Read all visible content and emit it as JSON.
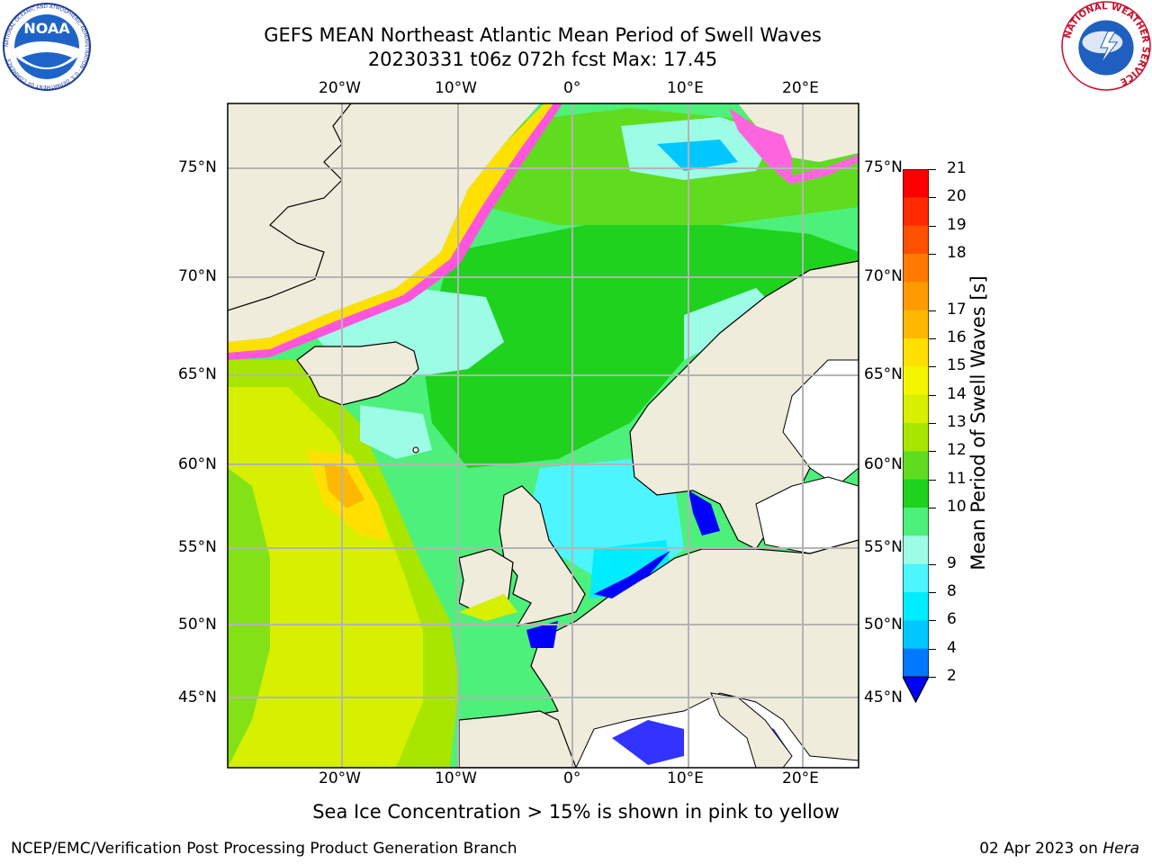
{
  "header": {
    "title_line1": "GEFS MEAN Northeast Atlantic Mean Period of Swell Waves",
    "title_line2": "20230331 t06z 072h fcst   Max: 17.45"
  },
  "logos": {
    "left": {
      "name": "NOAA",
      "ring_text": "NATIONAL OCEANIC AND ATMOSPHERIC ADMINISTRATION · U.S. DEPARTMENT OF COMMERCE"
    },
    "right": {
      "name": "NATIONAL WEATHER SERVICE"
    }
  },
  "map": {
    "lon_labels_top": [
      "20°W",
      "10°W",
      "0°",
      "10°E",
      "20°E"
    ],
    "lon_labels_bottom": [
      "20°W",
      "10°W",
      "0°",
      "10°E",
      "20°E"
    ],
    "lat_labels_left": [
      "75°N",
      "70°N",
      "65°N",
      "60°N",
      "55°N",
      "50°N",
      "45°N"
    ],
    "lat_labels_right": [
      "75°N",
      "70°N",
      "65°N",
      "60°N",
      "55°N",
      "50°N",
      "45°N"
    ],
    "land_color": "#efecdc",
    "grid_color": "#b4b4b4"
  },
  "colorbar": {
    "title": "Mean Period of Swell Waves [s]",
    "labels": [
      "21",
      "20",
      "19",
      "18",
      "17",
      "16",
      "15",
      "14",
      "13",
      "12",
      "11",
      "10",
      "9",
      "8",
      "6",
      "4",
      "2"
    ],
    "colors_top_to_bottom": [
      "#ff0000",
      "#ff2a00",
      "#ff5000",
      "#ff7a00",
      "#ff9a00",
      "#ffb800",
      "#ffe000",
      "#f5f500",
      "#d6f000",
      "#a8e600",
      "#5fdc1e",
      "#1ed21e",
      "#4df07a",
      "#9dfce6",
      "#4df6ff",
      "#00ecff",
      "#00c8ff",
      "#0078ff"
    ],
    "extend_color": "#0000ff"
  },
  "notes": {
    "ice": "Sea Ice Concentration > 15% is shown in pink to yellow"
  },
  "footer": {
    "left": "NCEP/EMC/Verification Post Processing Product Generation Branch",
    "date": "02 Apr 2023 on ",
    "host": "Hera"
  }
}
